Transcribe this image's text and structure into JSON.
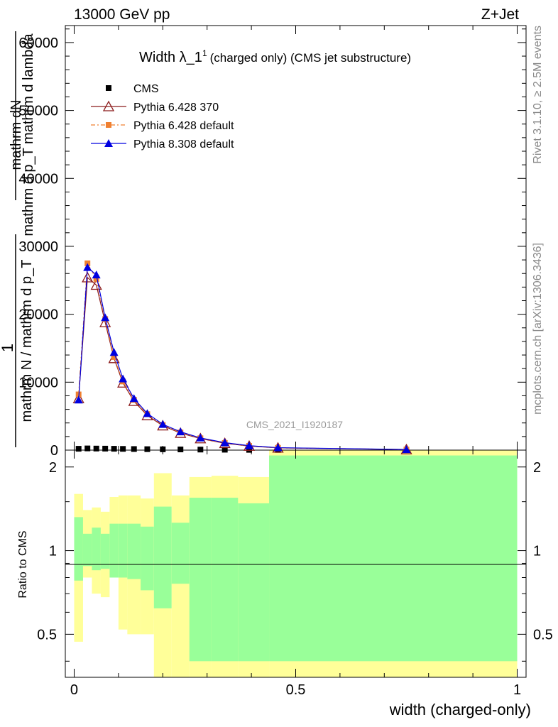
{
  "header": {
    "left": "13000 GeV pp",
    "right": "Z+Jet"
  },
  "side_labels": {
    "upper": "Rivet 3.1.10, ≥ 2.5M events",
    "lower": "mcplots.cern.ch [arXiv:1306.3436]"
  },
  "watermark": "CMS_2021_I1920187",
  "main_plot": {
    "title_main": "Width λ_1",
    "title_sup": "1",
    "title_rest": "(charged only) (CMS jet substructure)",
    "ylabel_top_lines": [
      "mathrm d",
      "2",
      "N",
      "mathrm d p",
      "T",
      "mathrm d lambda"
    ],
    "ylabel_numerator": "1",
    "ylabel_denominator": "mathrm N / mathrm d p",
    "ylabel_denominator_sub": "T",
    "ylabel_raw": [
      "mathrm dN",
      "mathrm d p_T mathrm d lambda",
      "1",
      "mathrm N / mathrm d p_T"
    ],
    "yticks": [
      "0",
      "10000",
      "20000",
      "30000",
      "40000",
      "50000",
      "60000"
    ],
    "ylim": [
      0,
      62500
    ],
    "legend": [
      {
        "name": "CMS",
        "color": "#000000",
        "marker": "square"
      },
      {
        "name": "Pythia 6.428 370",
        "color": "#8b1a1a",
        "marker": "triangle-open"
      },
      {
        "name": "Pythia 6.428 default",
        "color": "#f08030",
        "marker": "square-small"
      },
      {
        "name": "Pythia 8.308 default",
        "color": "#0000e0",
        "marker": "triangle"
      }
    ]
  },
  "ratio_plot": {
    "ylabel": "Ratio to CMS",
    "yticks": [
      "0.5",
      "1",
      "2"
    ],
    "ylim": [
      0.35,
      2.3
    ]
  },
  "xaxis": {
    "label": "width (charged-only)",
    "ticks": [
      "0",
      "0.5",
      "1"
    ],
    "xlim": [
      -0.02,
      1.02
    ]
  },
  "chart_data": {
    "type": "line",
    "x": [
      0.01,
      0.03,
      0.05,
      0.07,
      0.09,
      0.11,
      0.135,
      0.165,
      0.2,
      0.24,
      0.285,
      0.34,
      0.395,
      0.46,
      0.75
    ],
    "series": [
      {
        "name": "CMS",
        "values": [
          200,
          250,
          230,
          220,
          200,
          180,
          160,
          140,
          120,
          100,
          80,
          60,
          40,
          30,
          5
        ]
      },
      {
        "name": "Pythia 6.428 370",
        "values": [
          7600,
          25400,
          24300,
          18800,
          13500,
          9900,
          7200,
          5100,
          3600,
          2500,
          1700,
          1000,
          600,
          330,
          80
        ]
      },
      {
        "name": "Pythia 6.428 default",
        "values": [
          8200,
          27500,
          25200,
          19300,
          13700,
          10100,
          7400,
          5300,
          3700,
          2600,
          1750,
          1050,
          620,
          340,
          85
        ]
      },
      {
        "name": "Pythia 8.308 default",
        "values": [
          7400,
          26900,
          25800,
          19500,
          14400,
          10500,
          7600,
          5400,
          3800,
          2700,
          1800,
          1100,
          650,
          360,
          90
        ]
      }
    ],
    "ratio_bands": {
      "edges": [
        0.0,
        0.02,
        0.04,
        0.06,
        0.08,
        0.1,
        0.12,
        0.15,
        0.18,
        0.22,
        0.26,
        0.31,
        0.37,
        0.44,
        0.5,
        1.0
      ],
      "yellow_low": [
        0.47,
        0.8,
        0.7,
        0.68,
        0.8,
        0.52,
        0.5,
        0.5,
        0.3,
        0.3,
        0.3,
        0.3,
        0.3,
        0.3,
        0.3
      ],
      "yellow_high": [
        1.6,
        1.4,
        1.43,
        1.38,
        1.56,
        1.58,
        1.58,
        1.54,
        1.9,
        1.58,
        1.84,
        1.86,
        1.84,
        2.3,
        2.3
      ],
      "green_low": [
        0.78,
        0.88,
        0.85,
        0.86,
        0.8,
        0.8,
        0.79,
        0.72,
        0.62,
        0.76,
        0.4,
        0.4,
        0.4,
        0.4,
        0.4
      ],
      "green_high": [
        1.32,
        1.15,
        1.21,
        1.15,
        1.25,
        1.25,
        1.25,
        1.22,
        1.44,
        1.26,
        1.55,
        1.55,
        1.48,
        2.2,
        2.2
      ]
    },
    "grid": false,
    "legend_position": "top-left"
  }
}
